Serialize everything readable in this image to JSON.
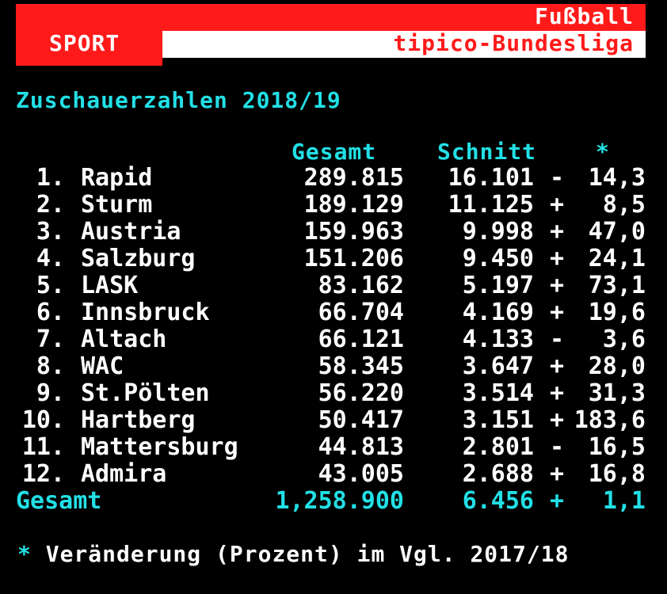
{
  "header": {
    "category": "Fußball",
    "section": "SPORT",
    "league": "tipico-Bundesliga"
  },
  "title": "Zuschauerzahlen 2018/19",
  "columns": {
    "total": "Gesamt",
    "average": "Schnitt",
    "change_marker": "*"
  },
  "rows": [
    {
      "rank": "1.",
      "team": "Rapid",
      "total": "289.815",
      "average": "16.101",
      "sign": "-",
      "change": "14,3"
    },
    {
      "rank": "2.",
      "team": "Sturm",
      "total": "189.129",
      "average": "11.125",
      "sign": "+",
      "change": "8,5"
    },
    {
      "rank": "3.",
      "team": "Austria",
      "total": "159.963",
      "average": "9.998",
      "sign": "+",
      "change": "47,0"
    },
    {
      "rank": "4.",
      "team": "Salzburg",
      "total": "151.206",
      "average": "9.450",
      "sign": "+",
      "change": "24,1"
    },
    {
      "rank": "5.",
      "team": "LASK",
      "total": "83.162",
      "average": "5.197",
      "sign": "+",
      "change": "73,1"
    },
    {
      "rank": "6.",
      "team": "Innsbruck",
      "total": "66.704",
      "average": "4.169",
      "sign": "+",
      "change": "19,6"
    },
    {
      "rank": "7.",
      "team": "Altach",
      "total": "66.121",
      "average": "4.133",
      "sign": "-",
      "change": "3,6"
    },
    {
      "rank": "8.",
      "team": "WAC",
      "total": "58.345",
      "average": "3.647",
      "sign": "+",
      "change": "28,0"
    },
    {
      "rank": "9.",
      "team": "St.Pölten",
      "total": "56.220",
      "average": "3.514",
      "sign": "+",
      "change": "31,3"
    },
    {
      "rank": "10.",
      "team": "Hartberg",
      "total": "50.417",
      "average": "3.151",
      "sign": "+",
      "change": "183,6"
    },
    {
      "rank": "11.",
      "team": "Mattersburg",
      "total": "44.813",
      "average": "2.801",
      "sign": "-",
      "change": "16,5"
    },
    {
      "rank": "12.",
      "team": "Admira",
      "total": "43.005",
      "average": "2.688",
      "sign": "+",
      "change": "16,8"
    }
  ],
  "summary": {
    "label": "Gesamt",
    "total": "1,258.900",
    "average": "6.456",
    "sign": "+",
    "change": "1,1"
  },
  "footnote": {
    "marker": "*",
    "text": "Veränderung (Prozent) im Vgl. 2017/18"
  },
  "colors": {
    "red": "#ff1a1a",
    "cyan": "#22e0e6",
    "white": "#ffffff",
    "background": "#000000"
  }
}
